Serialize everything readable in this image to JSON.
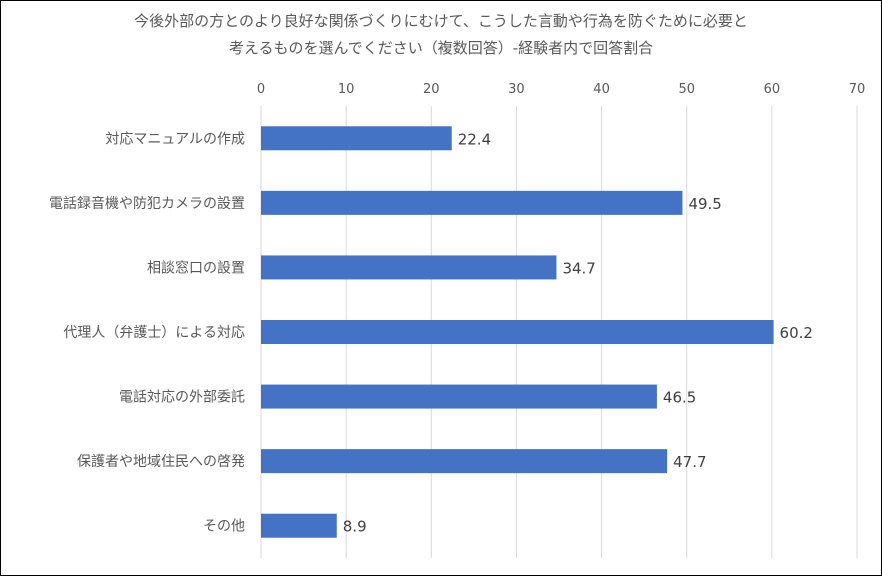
{
  "chart_data": {
    "type": "bar",
    "orientation": "horizontal",
    "title": "今後外部の方とのより良好な関係づくりにむけて、こうした言動や行為を防ぐために必要と考えるものを選んでください（複数回答）-経験者内で回答割合",
    "title_lines": [
      "今後外部の方とのより良好な関係づくりにむけて、こうした言動や行為を防ぐために必要と",
      "考えるものを選んでください（複数回答）-経験者内で回答割合"
    ],
    "categories": [
      "対応マニュアルの作成",
      "電話録音機や防犯カメラの設置",
      "相談窓口の設置",
      "代理人（弁護士）による対応",
      "電話対応の外部委託",
      "保護者や地域住民への啓発",
      "その他"
    ],
    "values": [
      22.4,
      49.5,
      34.7,
      60.2,
      46.5,
      47.7,
      8.9
    ],
    "xlim": [
      0,
      70
    ],
    "xticks": [
      0,
      10,
      20,
      30,
      40,
      50,
      60,
      70
    ],
    "xaxis_position": "top",
    "grid": true,
    "legend": "none",
    "bar_color": "#4472C4",
    "xlabel": "",
    "ylabel": ""
  }
}
